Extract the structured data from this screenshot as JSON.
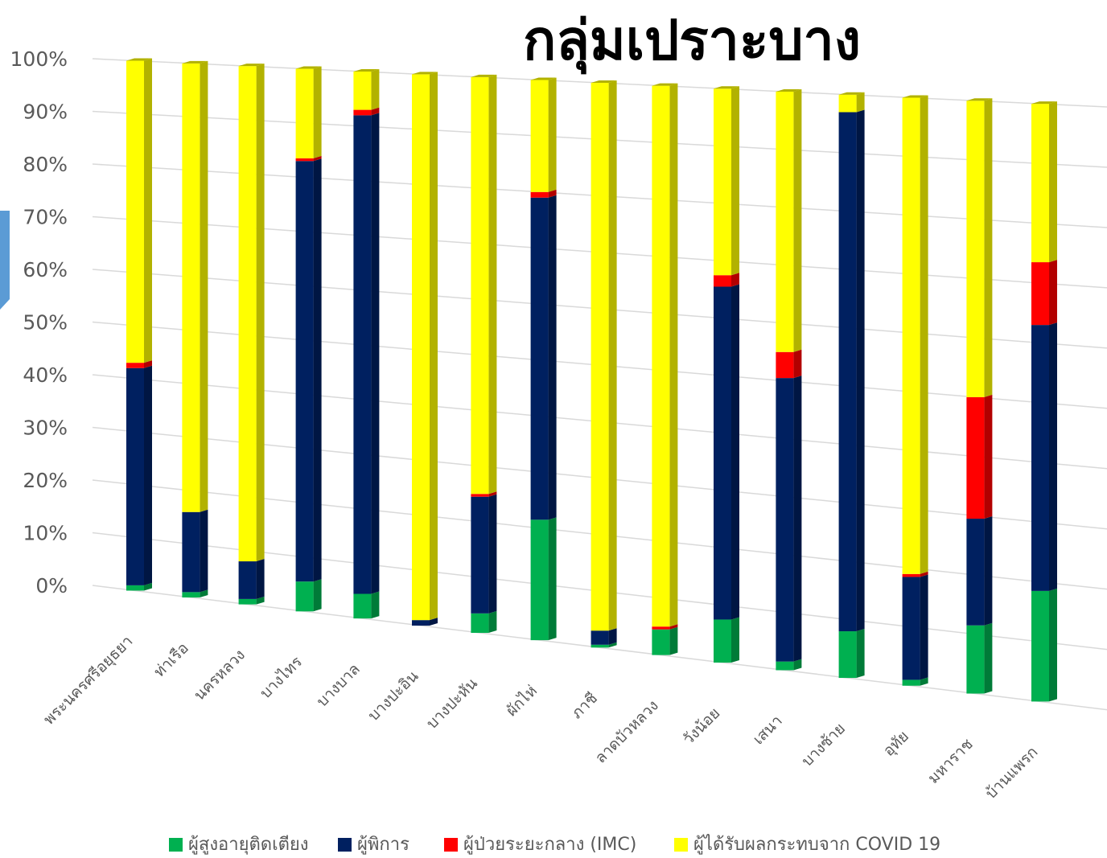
{
  "chart_data": {
    "type": "stacked_bar_3d",
    "title": "กลุ่มเปราะบาง",
    "categories": [
      "พระนครศรีอยุธยา",
      "ท่าเรือ",
      "นครหลวง",
      "บางไทร",
      "บางบาล",
      "บางปะอิน",
      "บางปะหัน",
      "ผักไห่",
      "ภาชี",
      "ลาดบัวหลวง",
      "วังน้อย",
      "เสนา",
      "บางซ้าย",
      "อุทัย",
      "มหาราช",
      "บ้านแพรก"
    ],
    "series": [
      {
        "name": "ผู้สูงอายุติดเตียง",
        "color": "#00b050",
        "values": [
          1,
          1,
          1,
          5.5,
          4.5,
          0,
          3.5,
          21.5,
          0.5,
          4.5,
          7.5,
          1.5,
          8,
          1,
          11.5,
          18.5
        ]
      },
      {
        "name": "ผู้พิการ",
        "color": "#002060",
        "values": [
          41,
          15,
          7,
          77.5,
          87.5,
          1,
          21,
          57.5,
          2.5,
          0,
          58,
          49,
          89,
          17.5,
          18,
          44.5
        ]
      },
      {
        "name": "ผู้ป่วยระยะกลาง (IMC)",
        "color": "#ff0000",
        "values": [
          1,
          0,
          0,
          0.5,
          1,
          0,
          0.5,
          1,
          0,
          0.5,
          2,
          4.5,
          0,
          0.5,
          20.5,
          10.5
        ]
      },
      {
        "name": "ผู้ได้รับผลกระทบจาก COVID 19",
        "color": "#ffff00",
        "values": [
          57,
          84,
          92,
          16.5,
          7,
          99,
          75,
          20,
          97,
          95,
          32.5,
          45,
          3,
          81,
          50,
          26.5
        ]
      }
    ],
    "ylim": [
      0,
      100
    ],
    "yticks": [
      {
        "value": 0,
        "label": "0%"
      },
      {
        "value": 10,
        "label": "10%"
      },
      {
        "value": 20,
        "label": "20%"
      },
      {
        "value": 30,
        "label": "30%"
      },
      {
        "value": 40,
        "label": "40%"
      },
      {
        "value": 50,
        "label": "50%"
      },
      {
        "value": 60,
        "label": "60%"
      },
      {
        "value": 70,
        "label": "70%"
      },
      {
        "value": 80,
        "label": "80%"
      },
      {
        "value": 90,
        "label": "90%"
      },
      {
        "value": 100,
        "label": "100%"
      }
    ],
    "grid": true,
    "legend": "bottom"
  }
}
